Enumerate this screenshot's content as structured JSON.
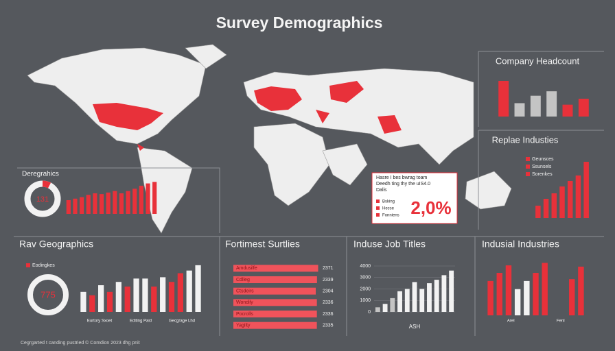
{
  "title": "Survey Demographics",
  "footer": "Cegrgarted t canding pustried © Comdion 2023 dhg pnit",
  "callout": {
    "lines": [
      "Hasre I bes bwrag toam",
      "Deedh ting thy the uIS4.0",
      "Dalis"
    ],
    "legend": [
      "Bsking",
      "Hecse",
      "Fonniens"
    ],
    "value_text": "2,0%"
  },
  "chart_data": [
    {
      "type": "bar",
      "title": "Company Headcount",
      "values": [
        48,
        18,
        28,
        34,
        16,
        24
      ],
      "colors": [
        "#e8313a",
        "#c4c4c4",
        "#c4c4c4",
        "#c4c4c4",
        "#e8313a",
        "#e8313a"
      ],
      "ylim": [
        0,
        60
      ]
    },
    {
      "type": "bar",
      "title": "Replae Industies",
      "legend": [
        "Geunsces",
        "Ssunsels",
        "Sorenkes"
      ],
      "values": [
        18,
        28,
        36,
        46,
        54,
        62,
        82
      ],
      "color": "#e8313a",
      "ylim": [
        0,
        90
      ]
    },
    {
      "type": "bar",
      "title": "Deregrahics",
      "center_label": "131",
      "values": [
        18,
        20,
        22,
        25,
        27,
        26,
        28,
        30,
        27,
        30,
        33,
        37,
        40,
        42
      ],
      "color": "#e8313a",
      "ylim": [
        0,
        45
      ]
    },
    {
      "type": "bar",
      "title": "Rav Geographics",
      "legend": [
        "Eodingkes"
      ],
      "center_label": "775",
      "group_labels": [
        "Eurtory Sxoet",
        "Editing Paid",
        "Gecgrage Lhd"
      ],
      "values": [
        30,
        25,
        40,
        30,
        45,
        38,
        50,
        50,
        38,
        52,
        45,
        58,
        62,
        70
      ],
      "colors": [
        "#f2f2f2",
        "#e8313a",
        "#f2f2f2",
        "#e8313a",
        "#f2f2f2",
        "#e8313a",
        "#f2f2f2",
        "#f2f2f2",
        "#e8313a",
        "#f2f2f2",
        "#e8313a",
        "#e8313a",
        "#f2f2f2",
        "#f2f2f2"
      ],
      "ylim": [
        0,
        75
      ]
    },
    {
      "type": "hbar",
      "title": "Fortimest Surtlies",
      "categories": [
        "Amdusilfe",
        "Cdlleg",
        "Ctsdeirs",
        "Wondily",
        "Pocrolls",
        "Yagilty"
      ],
      "values": [
        2371,
        2339,
        2304,
        2336,
        2336,
        2335
      ],
      "color": "#f0535b",
      "xlim": [
        0,
        2400
      ]
    },
    {
      "type": "bar",
      "title": "Induse Job Titles",
      "x_label": "ASH",
      "values": [
        400,
        700,
        1200,
        1800,
        2000,
        2600,
        2000,
        2500,
        2800,
        3200,
        3600
      ],
      "colors": [
        "#c4c4c4",
        "#f2f2f2",
        "#c4c4c4",
        "#f2f2f2",
        "#f2f2f2",
        "#f2f2f2",
        "#f2f2f2",
        "#f2f2f2",
        "#f2f2f2",
        "#f2f2f2",
        "#f2f2f2"
      ],
      "ylim": [
        0,
        4000
      ],
      "yticks": [
        0,
        1000,
        2000,
        3000,
        4000
      ],
      "grid": true
    },
    {
      "type": "bar",
      "title": "Indusial Industries",
      "group_labels": [
        "Arel",
        "Fenl"
      ],
      "values": [
        55,
        68,
        80,
        42,
        55,
        68,
        84,
        null,
        null,
        58,
        78
      ],
      "colors": [
        "#e8313a",
        "#e8313a",
        "#e8313a",
        "#f2f2f2",
        "#f2f2f2",
        "#e8313a",
        "#e8313a",
        "#e8313a",
        "#e8313a",
        "#e8313a",
        "#e8313a"
      ],
      "ylim": [
        0,
        90
      ]
    }
  ]
}
